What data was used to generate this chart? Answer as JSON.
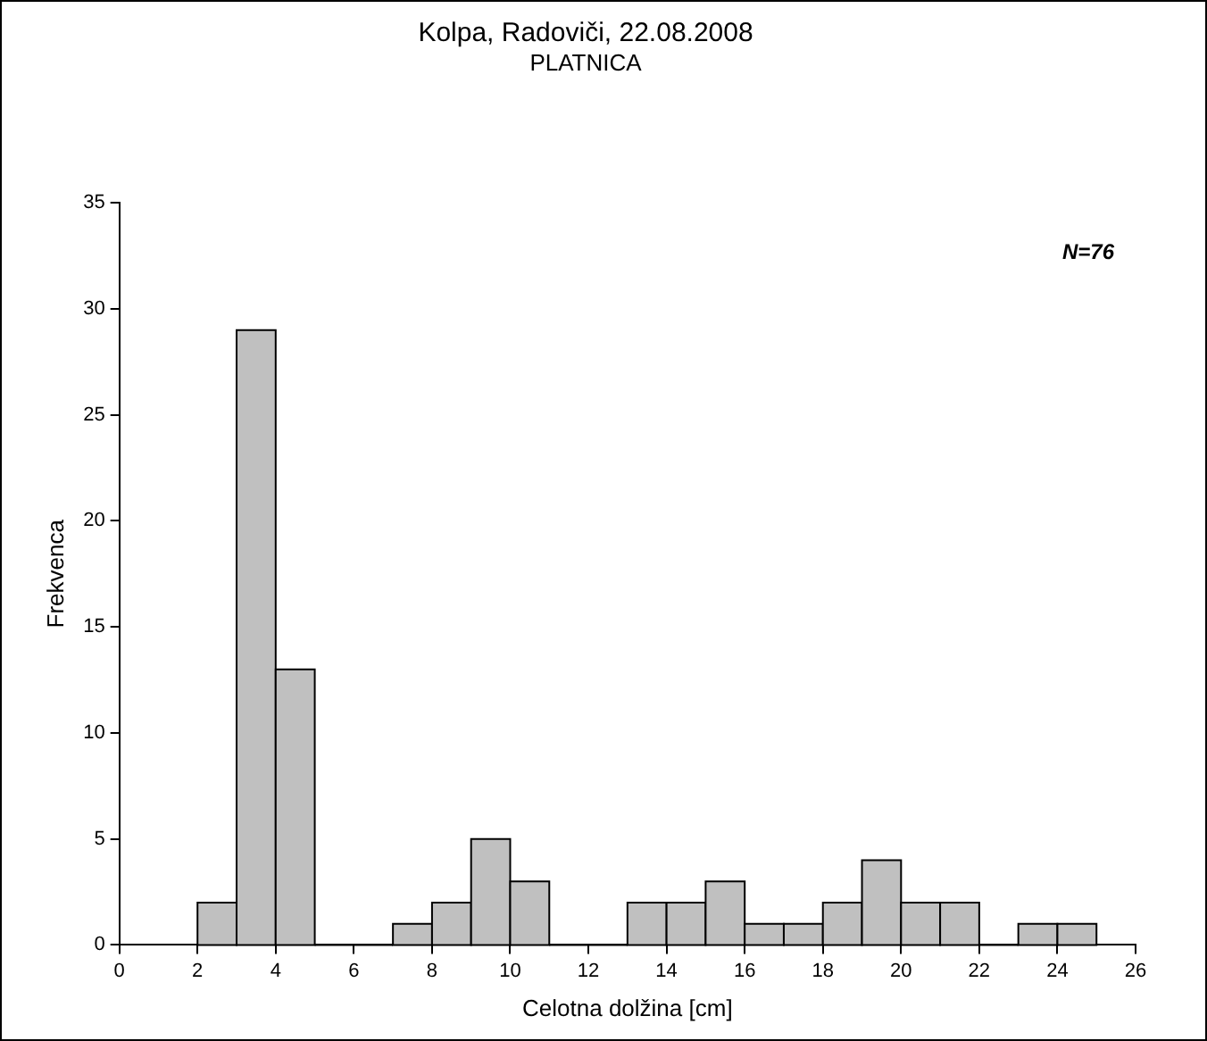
{
  "chart_data": {
    "type": "histogram",
    "title": "Kolpa, Radoviči, 22.08.2008",
    "subtitle": "PLATNICA",
    "xlabel": "Celotna dolžina [cm]",
    "ylabel": "Frekvenca",
    "bins": [
      2,
      3,
      4,
      5,
      6,
      7,
      8,
      9,
      10,
      11,
      12,
      13,
      14,
      15,
      16,
      17,
      18,
      19,
      20,
      21,
      22,
      23,
      24,
      25
    ],
    "values": [
      2,
      29,
      13,
      0,
      0,
      1,
      2,
      5,
      3,
      0,
      0,
      2,
      2,
      3,
      1,
      1,
      2,
      4,
      2,
      2,
      0,
      1,
      1
    ],
    "color": "#c0c0c0",
    "xlim": [
      0,
      26
    ],
    "xticks": [
      0,
      2,
      4,
      6,
      8,
      10,
      12,
      14,
      16,
      18,
      20,
      22,
      24,
      26
    ],
    "ylim": [
      0,
      35
    ],
    "yticks": [
      0,
      5,
      10,
      15,
      20,
      25,
      30,
      35
    ],
    "grid": false,
    "legend": false,
    "annotations": [
      "N=76"
    ]
  }
}
